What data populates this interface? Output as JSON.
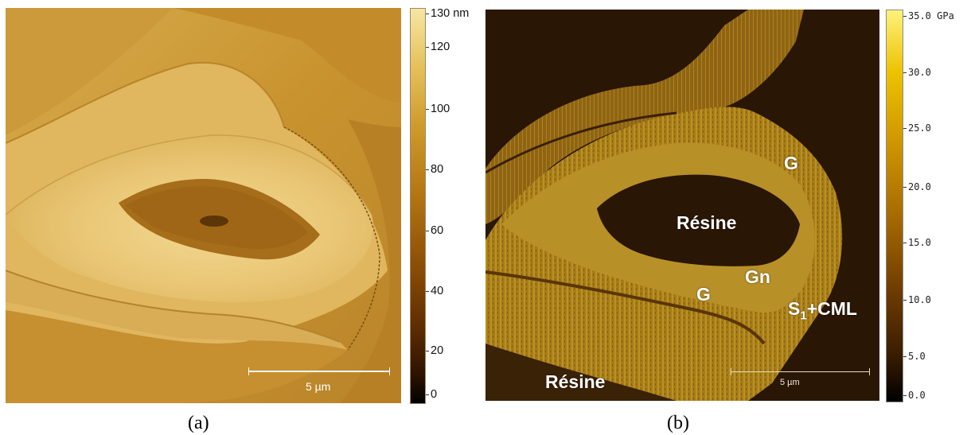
{
  "panel_a": {
    "caption": "(a)",
    "scale_bar_label": "5 µm",
    "colorbar_ticks": [
      "130 nm",
      "120",
      "100",
      "80",
      "60",
      "40",
      "20",
      "0"
    ],
    "colors": {
      "light": "#e8c373",
      "mid": "#c7952e",
      "dark": "#8a5a10"
    }
  },
  "panel_b": {
    "caption": "(b)",
    "scale_bar_label": "5 µm",
    "colorbar_ticks": [
      "35.0 GPa",
      "30.0",
      "25.0",
      "20.0",
      "15.0",
      "10.0",
      "5.0",
      "0.0"
    ],
    "labels": {
      "g_top": "G",
      "resine_center": "Résine",
      "gn": "Gn",
      "g_left": "G",
      "s1_main": "S",
      "s1_sub": "1",
      "s1_rest": "+CML",
      "resine_bottom": "Résine"
    },
    "colors": {
      "background": "#281604",
      "layer": "#b0861c",
      "layer_dark": "#6e4a10"
    }
  }
}
